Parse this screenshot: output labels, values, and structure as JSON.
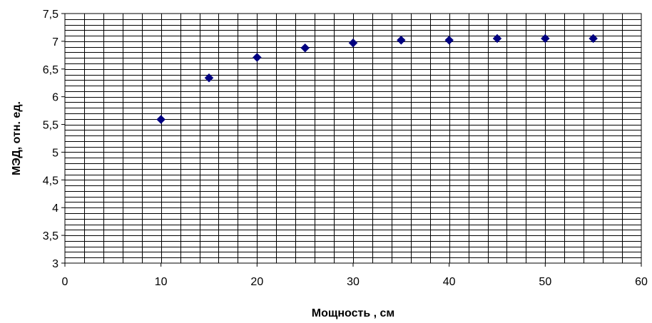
{
  "chart_data": {
    "type": "scatter",
    "title": "",
    "xlabel": "Мощность , см",
    "ylabel": "МЭД, отн. ед.",
    "xlim": [
      0,
      60
    ],
    "ylim": [
      3,
      7.5
    ],
    "x_ticks": [
      0,
      10,
      20,
      30,
      40,
      50,
      60
    ],
    "x_tick_labels": [
      "0",
      "10",
      "20",
      "30",
      "40",
      "50",
      "60"
    ],
    "y_ticks": [
      3,
      3.5,
      4,
      4.5,
      5,
      5.5,
      6,
      6.5,
      7,
      7.5
    ],
    "y_tick_labels": [
      "3",
      "3,5",
      "4",
      "4,5",
      "5",
      "5,5",
      "6",
      "6,5",
      "7",
      "7,5"
    ],
    "grid": true,
    "minor_grid": true,
    "legend": "none",
    "marker": "diamond",
    "marker_color": "#000080",
    "series": [
      {
        "x": [
          10,
          15,
          20,
          25,
          30,
          35,
          40,
          45,
          50,
          55
        ],
        "y": [
          5.59,
          6.34,
          6.71,
          6.88,
          6.97,
          7.02,
          7.02,
          7.05,
          7.05,
          7.05
        ]
      }
    ]
  }
}
